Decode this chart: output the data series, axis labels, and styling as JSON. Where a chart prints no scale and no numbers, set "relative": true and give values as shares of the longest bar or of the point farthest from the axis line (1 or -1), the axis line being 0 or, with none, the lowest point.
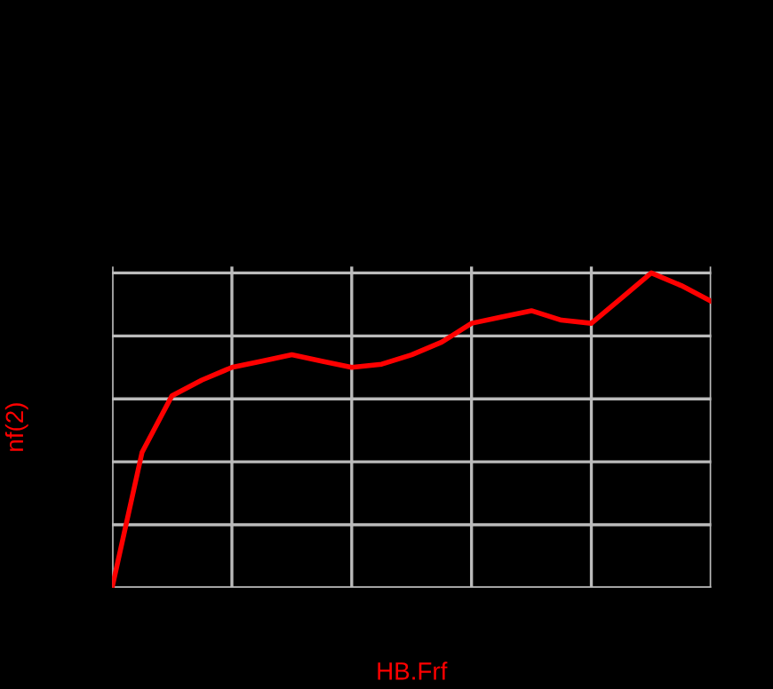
{
  "chart_data": {
    "type": "line",
    "xlabel": "HB.Frf",
    "ylabel": "nf(2)",
    "relative": true,
    "grid": true,
    "marker": "none",
    "line_style": "solid",
    "categories": [
      null,
      null,
      null,
      null,
      null,
      null,
      null,
      null,
      null,
      null,
      null,
      null,
      null,
      null,
      null,
      null,
      null,
      null,
      null,
      null,
      null
    ],
    "series": [
      {
        "color": "#ff0000",
        "values": [
          0,
          0.43,
          0.61,
          0.66,
          0.7,
          0.72,
          0.74,
          0.72,
          0.7,
          0.71,
          0.74,
          0.78,
          0.84,
          0.86,
          0.88,
          0.85,
          0.84,
          0.92,
          1.0,
          0.96,
          0.91
        ]
      }
    ]
  }
}
